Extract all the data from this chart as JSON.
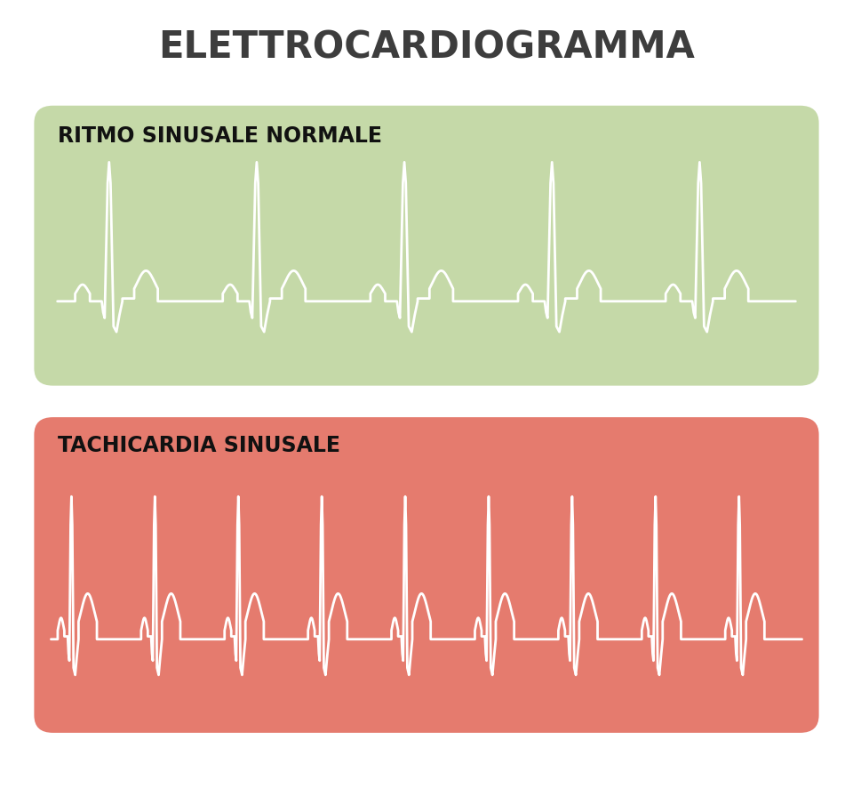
{
  "title": "ELETTROCARDIOGRAMMA",
  "title_color": "#3d3d3d",
  "title_fontsize": 30,
  "background_color": "#ffffff",
  "panel1_label": "RITMO SINUSALE NORMALE",
  "panel2_label": "TACHICARDIA SINUSALE",
  "panel1_bg": "#c5d9a8",
  "panel2_bg": "#e57b6e",
  "label_color": "#111111",
  "label_fontsize": 17,
  "ecg_color": "#ffffff",
  "ecg_linewidth": 2.0
}
